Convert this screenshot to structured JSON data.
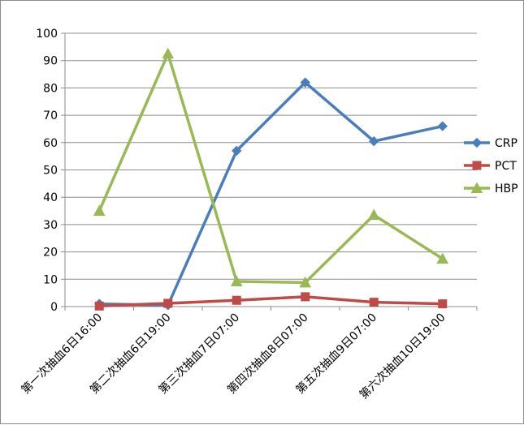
{
  "chart_data": {
    "type": "line",
    "title": "",
    "xlabel": "",
    "ylabel": "",
    "ylim": [
      0,
      100
    ],
    "yticks": [
      0,
      10,
      20,
      30,
      40,
      50,
      60,
      70,
      80,
      90,
      100
    ],
    "grid": "horizontal",
    "legend_position": "right",
    "categories": [
      "第一次抽血6日16:00",
      "第二次抽血6日19:00",
      "第三次抽血7日07:00",
      "第四次抽血8日07:00",
      "第五次抽血9日07:00",
      "第六次抽血10日19:00"
    ],
    "series": [
      {
        "name": "CRP",
        "color": "#4a7ebb",
        "marker": "diamond",
        "values": [
          1.0,
          0.5,
          57.0,
          82.0,
          60.5,
          66.0
        ]
      },
      {
        "name": "PCT",
        "color": "#be4b48",
        "marker": "square",
        "values": [
          0.2,
          1.2,
          2.3,
          3.6,
          1.6,
          1.0
        ]
      },
      {
        "name": "HBP",
        "color": "#98b954",
        "marker": "triangle",
        "values": [
          35.0,
          92.5,
          9.2,
          8.8,
          33.5,
          17.5
        ]
      }
    ]
  }
}
